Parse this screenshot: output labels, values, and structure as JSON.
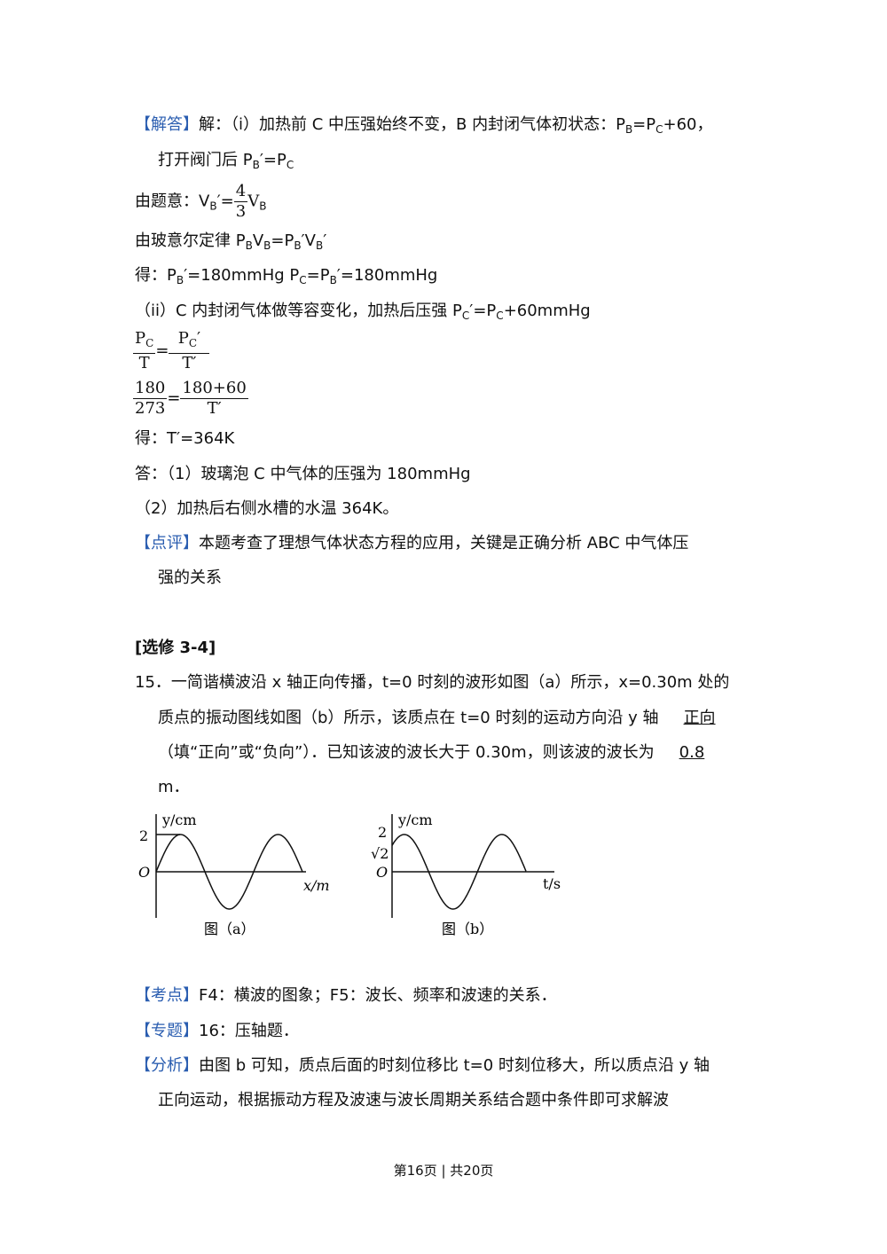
{
  "solution": {
    "tag": "【解答】",
    "lines": [
      [
        "解：（i）加热前 C 中压强始终不变，B 内封闭气体初状态：P",
        "B",
        "=P",
        "C",
        "+60，"
      ],
      [
        "打开阀门后 P",
        "B",
        "′=P",
        "C"
      ],
      [
        "由题意：V",
        "B",
        "′=",
        "4",
        "3",
        "V",
        "B"
      ],
      [
        "由玻意尔定律 P",
        "B",
        "V",
        "B",
        "=P",
        "B",
        "′V",
        "B",
        "′"
      ],
      [
        "得：P",
        "B",
        "′=180mmHg P",
        "C",
        "=P",
        "B",
        "′=180mmHg"
      ],
      [
        "（ii）C 内封闭气体做等容变化，加热后压强 P",
        "C",
        "′=P",
        "C",
        "+60mmHg"
      ],
      [
        "P",
        "C",
        "T",
        "=",
        "P",
        "C",
        "′",
        "T′"
      ],
      [
        "180",
        "273",
        "=",
        "180+60",
        "T′"
      ],
      [
        "得：T′=364K"
      ],
      [
        "答：（1）玻璃泡 C 中气体的压强为 180mmHg"
      ],
      [
        "（2）加热后右侧水槽的水温 364K。"
      ]
    ]
  },
  "review": {
    "tag": "【点评】",
    "lines": [
      "本题考查了理想气体状态方程的应用，关键是正确分析 ABC 中气体压",
      "强的关系"
    ]
  },
  "section": "[选修 3-4]",
  "question": {
    "number": "15．",
    "lines": [
      [
        "一简谐横波沿 x 轴正向传播，t=0 时刻的波形如图（a）所示，x=0.30m 处的"
      ],
      [
        "质点的振动图线如图（b）所示，该质点在 t=0 时刻的运动方向沿 y 轴",
        "正向"
      ],
      [
        "（填“正向”或“负向”）．已知该波的波长大于 0.30m，则该波的波长为",
        "0.8"
      ],
      [
        "m．"
      ]
    ]
  },
  "figures": {
    "a": {
      "ylabel": "y/cm",
      "ytick": "2",
      "origin": "O",
      "xlabel": "x/m",
      "caption": "图（a）"
    },
    "b": {
      "ylabel": "y/cm",
      "yticks": [
        "2",
        "√2"
      ],
      "origin": "O",
      "xlabel": "t/s",
      "caption": "图（b）"
    }
  },
  "knowledge": {
    "tag": "【考点】",
    "text": "F4：横波的图象；F5：波长、频率和波速的关系．"
  },
  "topic": {
    "tag": "【专题】",
    "text": "16：压轴题．"
  },
  "analysis": {
    "tag": "【分析】",
    "lines": [
      "由图 b 可知，质点后面的时刻位移比 t=0 时刻位移大，所以质点沿 y 轴",
      "正向运动，根据振动方程及波速与波长周期关系结合题中条件即可求解波"
    ]
  },
  "footer": "第16页 | 共20页"
}
